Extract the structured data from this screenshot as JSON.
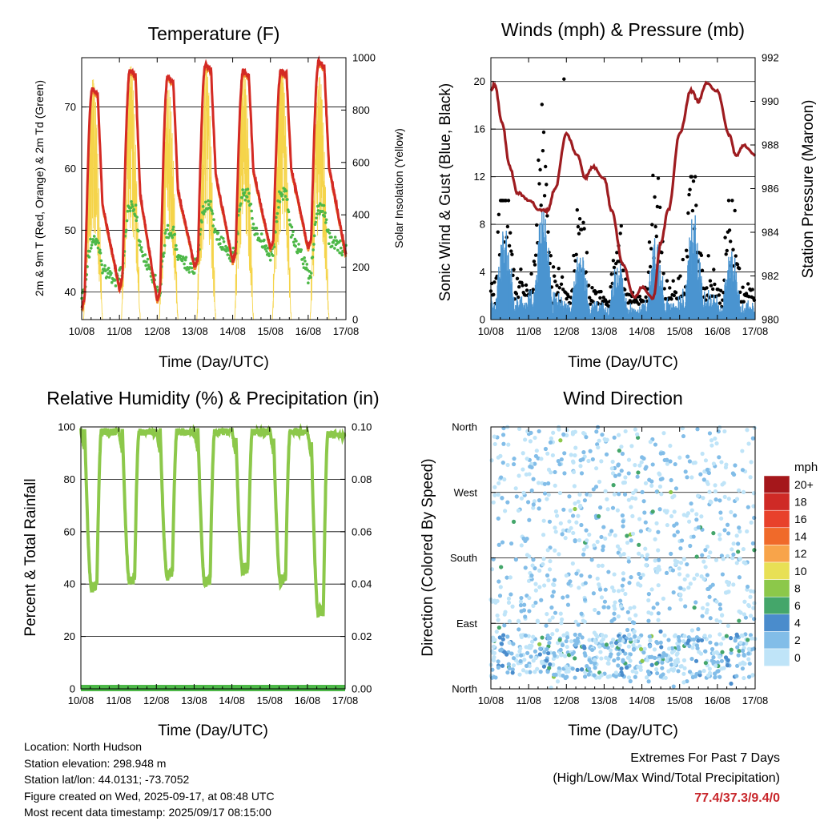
{
  "colors": {
    "temp_2m": "#d42a24",
    "temp_9m": "#f08c2a",
    "dewpoint": "#4db848",
    "solar": "#f5d44a",
    "gust": "#000000",
    "wind": "#4a94d0",
    "pressure": "#9e1c20",
    "rh": "#8cc84a",
    "precip": "#4db848",
    "extremes": "#c8262b"
  },
  "footer": {
    "location": "Location: North Hudson",
    "elevation": "Station elevation: 298.948 m",
    "latlon": "Station lat/lon: 44.0131; -73.7052",
    "created": "Figure created on Wed, 2025-09-17, at 08:48 UTC",
    "recent": "Most recent data timestamp: 2025/09/17 08:15:00",
    "extremes_title": "Extremes For Past 7 Days",
    "extremes_sub": "(High/Low/Max Wind/Total Precipitation)",
    "extremes_value": "77.4/37.3/9.4/0"
  },
  "chart_data": [
    {
      "type": "line",
      "title": "Temperature (F)",
      "xlabel": "Time (Day/UTC)",
      "ylabel": "2m & 9m T (Red, Orange) & 2m Td (Green)",
      "ylabel_right": "Solar Insolation (Yellow)",
      "x_ticks": [
        "10/08",
        "11/08",
        "12/08",
        "13/08",
        "14/08",
        "15/08",
        "16/08",
        "17/08"
      ],
      "ylim": [
        35.5,
        78
      ],
      "y_ticks": [
        40,
        50,
        60,
        70
      ],
      "ylim_right": [
        0,
        1000
      ],
      "y_ticks_right": [
        0,
        200,
        400,
        600,
        800,
        1000
      ],
      "temp_daily_high": [
        73,
        76,
        75,
        77,
        76,
        76,
        77.4
      ],
      "temp_daily_low": [
        37.3,
        40.5,
        38.5,
        44,
        45,
        47,
        47,
        46
      ],
      "dewpoint_daily_max": [
        50,
        56,
        52,
        56,
        58,
        58,
        56
      ],
      "dewpoint_daily_min": [
        37.5,
        40.5,
        38,
        43,
        44,
        44,
        40,
        46
      ],
      "solar_daily_peak": [
        920,
        970,
        880,
        960,
        950,
        960,
        930
      ]
    },
    {
      "type": "line",
      "title": "Winds (mph) & Pressure (mb)",
      "xlabel": "Time (Day/UTC)",
      "ylabel": "Sonic Wind & Gust (Blue, Black)",
      "ylabel_right": "Station Pressure (Maroon)",
      "x_ticks": [
        "10/08",
        "11/08",
        "12/08",
        "13/08",
        "14/08",
        "15/08",
        "16/08",
        "17/08"
      ],
      "ylim": [
        0,
        22
      ],
      "y_ticks": [
        0,
        4,
        8,
        12,
        16,
        20
      ],
      "ylim_right": [
        980,
        992
      ],
      "y_ticks_right": [
        980,
        982,
        984,
        986,
        988,
        990,
        992
      ],
      "pressure_x": [
        0,
        0.1,
        0.3,
        0.5,
        0.7,
        1.0,
        1.3,
        1.5,
        1.7,
        2.0,
        2.3,
        2.5,
        2.7,
        3.0,
        3.2,
        3.5,
        3.8,
        4.0,
        4.3,
        4.5,
        4.7,
        5.0,
        5.3,
        5.5,
        5.7,
        6.0,
        6.3,
        6.5,
        6.7,
        7.0
      ],
      "pressure": [
        990.5,
        990.8,
        989.0,
        987.0,
        985.8,
        985.5,
        985.0,
        985.0,
        986.0,
        988.5,
        987.5,
        986.5,
        987.0,
        986.5,
        985.0,
        982.5,
        981.0,
        981.5,
        981.0,
        983.5,
        985.0,
        988.5,
        990.5,
        990.0,
        990.8,
        990.5,
        988.5,
        987.5,
        988.0,
        987.5
      ],
      "wind_daily_max": [
        8,
        9.4,
        6,
        5,
        7,
        9,
        6
      ],
      "gust_daily_max": [
        10,
        20.2,
        12,
        11,
        12.7,
        12,
        10
      ]
    },
    {
      "type": "line",
      "title": "Relative Humidity (%) & Precipitation (in)",
      "xlabel": "Time (Day/UTC)",
      "ylabel": "Percent & Total Rainfall",
      "x_ticks": [
        "10/08",
        "11/08",
        "12/08",
        "13/08",
        "14/08",
        "15/08",
        "16/08",
        "17/08"
      ],
      "ylim": [
        0,
        100
      ],
      "y_ticks": [
        0,
        20,
        40,
        60,
        80,
        100
      ],
      "ylim_right": [
        0,
        0.1
      ],
      "y_ticks_right": [
        "0.00",
        "0.02",
        "0.04",
        "0.06",
        "0.08",
        "0.10"
      ],
      "rh_daily_min": [
        37,
        40,
        42,
        39,
        44,
        40,
        28
      ],
      "rh_daily_max": [
        99,
        99,
        99,
        99,
        99,
        99,
        98
      ],
      "precip_total": 0
    },
    {
      "type": "scatter",
      "title": "Wind Direction",
      "xlabel": "Time (Day/UTC)",
      "ylabel": "Direction (Colored By Speed)",
      "x_ticks": [
        "10/08",
        "11/08",
        "12/08",
        "13/08",
        "14/08",
        "15/08",
        "16/08",
        "17/08"
      ],
      "y_ticks": [
        "North",
        "East",
        "South",
        "West",
        "North"
      ],
      "ylim": [
        0,
        360
      ],
      "colorbar": {
        "title": "mph",
        "labels": [
          "20+",
          "18",
          "16",
          "14",
          "12",
          "10",
          "8",
          "6",
          "4",
          "2",
          "0"
        ],
        "colors": [
          "#a5171b",
          "#cf2a26",
          "#e8412b",
          "#f06a2a",
          "#f8a44a",
          "#e8e055",
          "#8cc84a",
          "#44a66a",
          "#4a8ccc",
          "#82bde8",
          "#bfe4f8"
        ]
      }
    }
  ]
}
